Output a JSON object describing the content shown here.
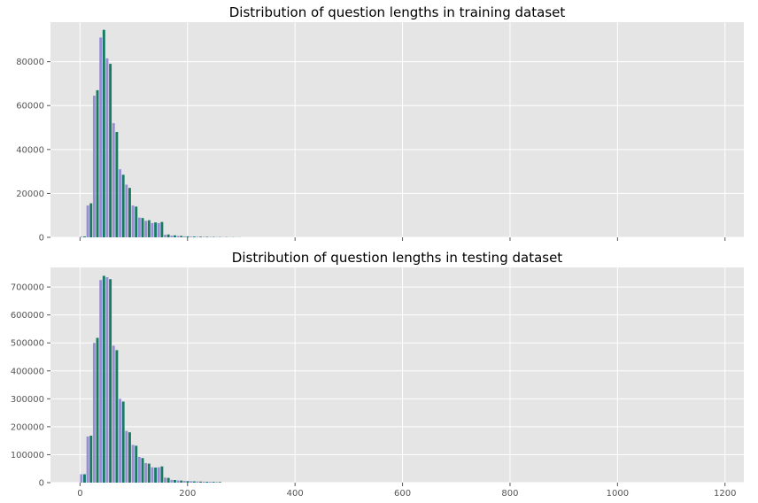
{
  "colors": {
    "panel_bg": "#e5e5e5",
    "grid": "#ffffff",
    "series_1": "#988ed5",
    "series_2": "#167b62",
    "tick": "#555555"
  },
  "chart_data": [
    {
      "type": "bar",
      "title": "Distribution of question lengths in training dataset",
      "grid": true,
      "xlim": [
        -55,
        1235
      ],
      "ylim": [
        0,
        98000
      ],
      "xticks": [
        0,
        200,
        400,
        600,
        800,
        1000,
        1200
      ],
      "xtick_labels_shown": false,
      "yticks": [
        0,
        20000,
        40000,
        60000,
        80000
      ],
      "ytick_labels": [
        "0",
        "20000",
        "40000",
        "60000",
        "80000"
      ],
      "bin_width": 12,
      "bin_starts": [
        0,
        12,
        24,
        36,
        48,
        60,
        72,
        84,
        96,
        108,
        120,
        132,
        144,
        156,
        168,
        180,
        192,
        204,
        216,
        228,
        240,
        252,
        264,
        276,
        288
      ],
      "series": [
        {
          "values": [
            300,
            14500,
            64500,
            91000,
            81500,
            52000,
            31000,
            24000,
            14500,
            9000,
            7500,
            6500,
            6500,
            1200,
            800,
            600,
            400,
            300,
            250,
            200,
            150,
            120,
            100,
            80,
            50
          ]
        },
        {
          "values": [
            400,
            15500,
            67000,
            94500,
            79000,
            48000,
            28500,
            22500,
            14000,
            8800,
            7800,
            6800,
            7000,
            1300,
            900,
            650,
            450,
            350,
            280,
            220,
            170,
            130,
            110,
            90,
            60
          ]
        }
      ]
    },
    {
      "type": "bar",
      "title": "Distribution of question lengths in testing dataset",
      "grid": true,
      "xlim": [
        -55,
        1235
      ],
      "ylim": [
        0,
        770000
      ],
      "xticks": [
        0,
        200,
        400,
        600,
        800,
        1000,
        1200
      ],
      "xtick_labels": [
        "0",
        "200",
        "400",
        "600",
        "800",
        "1000",
        "1200"
      ],
      "yticks": [
        0,
        100000,
        200000,
        300000,
        400000,
        500000,
        600000,
        700000
      ],
      "ytick_labels": [
        "0",
        "100000",
        "200000",
        "300000",
        "400000",
        "500000",
        "600000",
        "700000"
      ],
      "bin_width": 12,
      "bin_starts": [
        0,
        12,
        24,
        36,
        48,
        60,
        72,
        84,
        96,
        108,
        120,
        132,
        144,
        156,
        168,
        180,
        192,
        204,
        216,
        228,
        240,
        252
      ],
      "series": [
        {
          "values": [
            30000,
            165000,
            500000,
            725000,
            735000,
            490000,
            300000,
            185000,
            135000,
            92000,
            70000,
            55000,
            55000,
            18000,
            10000,
            8000,
            6000,
            5000,
            4000,
            3500,
            3000,
            2500
          ]
        },
        {
          "values": [
            30000,
            168000,
            518000,
            740000,
            728000,
            474000,
            290000,
            180000,
            132000,
            88000,
            68000,
            54000,
            58000,
            17000,
            9500,
            7500,
            5500,
            4500,
            3800,
            3200,
            2800,
            2300
          ]
        }
      ]
    }
  ]
}
